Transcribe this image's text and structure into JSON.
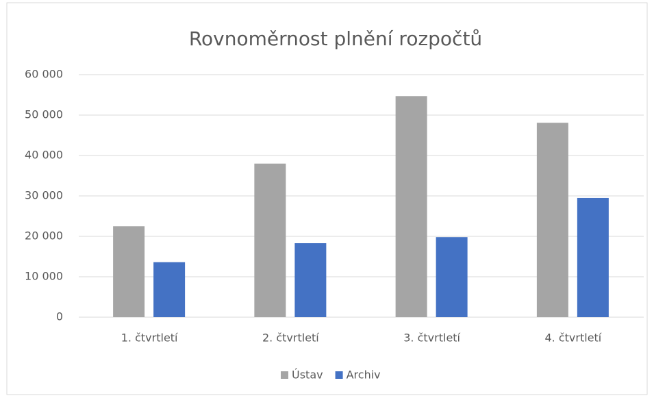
{
  "chart_data": {
    "type": "bar",
    "title": "Rovnoměrnost plnění rozpočtů",
    "categories": [
      "1. čtvrtletí",
      "2. čtvrtletí",
      "3. čtvrtletí",
      "4. čtvrtletí"
    ],
    "series": [
      {
        "name": "Ústav",
        "color": "#a5a5a5",
        "values": [
          22500,
          38000,
          54700,
          48100
        ]
      },
      {
        "name": "Archiv",
        "color": "#4472c4",
        "values": [
          13600,
          18300,
          19800,
          29500
        ]
      }
    ],
    "ylim": [
      0,
      60000
    ],
    "yticks": [
      0,
      {
        "value": 10000,
        "label": "10 000"
      },
      {
        "value": 20000,
        "label": "20 000"
      },
      {
        "value": 30000,
        "label": "30 000"
      },
      {
        "value": 40000,
        "label": "40 000"
      },
      {
        "value": 50000,
        "label": "50 000"
      },
      {
        "value": 60000,
        "label": "60 000"
      }
    ],
    "grid": true,
    "legend": "bottom"
  }
}
